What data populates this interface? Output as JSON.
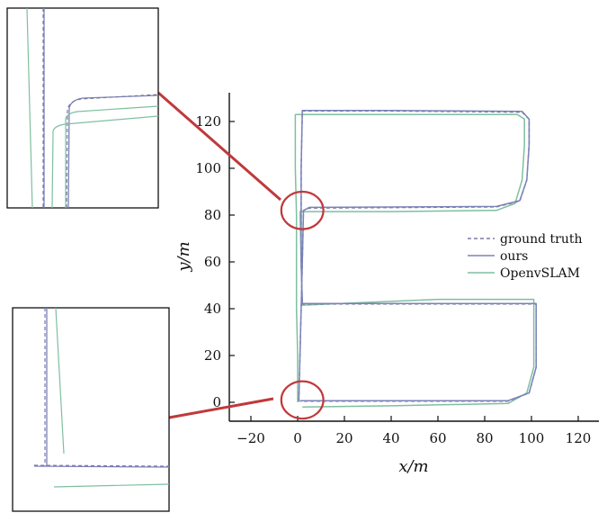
{
  "chart_data": {
    "type": "line",
    "xlabel": "x/m",
    "ylabel": "y/m",
    "xlim": [
      -28,
      130
    ],
    "ylim": [
      -8,
      132
    ],
    "xticks": [
      -20,
      0,
      20,
      40,
      60,
      80,
      100,
      120
    ],
    "yticks": [
      0,
      20,
      40,
      60,
      80,
      100,
      120
    ],
    "grid": false,
    "legend_position": "right",
    "series": [
      {
        "name": "ground truth",
        "style": "dashed",
        "color": "#7b78a6",
        "points": [
          [
            0.5,
            0.5
          ],
          [
            1,
            20
          ],
          [
            1.5,
            40
          ],
          [
            2,
            60
          ],
          [
            2.5,
            82
          ],
          [
            5,
            83
          ],
          [
            85,
            83.5
          ],
          [
            95,
            86
          ],
          [
            98,
            95
          ],
          [
            99,
            110
          ],
          [
            99,
            121
          ],
          [
            96,
            124
          ],
          [
            40,
            124.5
          ],
          [
            2,
            124.5
          ],
          [
            1.5,
            100
          ],
          [
            1.5,
            82
          ],
          [
            1.5,
            60
          ],
          [
            2,
            42
          ],
          [
            40,
            42
          ],
          [
            102,
            42
          ],
          [
            102,
            15
          ],
          [
            99,
            4
          ],
          [
            90,
            0.5
          ],
          [
            40,
            0.5
          ],
          [
            1,
            0.5
          ]
        ]
      },
      {
        "name": "ours",
        "style": "solid",
        "color": "#7b82b8",
        "points": [
          [
            0.5,
            0.3
          ],
          [
            1,
            20
          ],
          [
            1.5,
            40
          ],
          [
            2,
            60
          ],
          [
            2.5,
            82
          ],
          [
            5,
            83.3
          ],
          [
            85,
            83.7
          ],
          [
            95,
            86.2
          ],
          [
            98,
            95
          ],
          [
            99,
            110
          ],
          [
            99,
            121
          ],
          [
            96,
            124.3
          ],
          [
            40,
            124.7
          ],
          [
            2,
            124.7
          ],
          [
            1.5,
            100
          ],
          [
            1.5,
            82
          ],
          [
            1.5,
            60
          ],
          [
            2,
            42.2
          ],
          [
            40,
            42.2
          ],
          [
            102,
            42.2
          ],
          [
            102,
            15
          ],
          [
            99,
            4
          ],
          [
            90,
            0.7
          ],
          [
            40,
            0.7
          ],
          [
            1,
            0.7
          ]
        ]
      },
      {
        "name": "OpenvSLAM",
        "style": "solid",
        "color": "#7fbfa0",
        "points": [
          [
            2,
            -2
          ],
          [
            40,
            -1.5
          ],
          [
            90,
            -0.5
          ],
          [
            98,
            4
          ],
          [
            101,
            15
          ],
          [
            101,
            44
          ],
          [
            60,
            44
          ],
          [
            2,
            41.5
          ],
          [
            1.5,
            60
          ],
          [
            1,
            81.5
          ],
          [
            40,
            81.5
          ],
          [
            85,
            82
          ],
          [
            93,
            85
          ],
          [
            96,
            95
          ],
          [
            97,
            110
          ],
          [
            97,
            121
          ],
          [
            94,
            123
          ],
          [
            40,
            123
          ],
          [
            -1,
            123
          ],
          [
            -1,
            100
          ],
          [
            -0.5,
            80
          ],
          [
            -0.5,
            60
          ],
          [
            -0.5,
            40
          ],
          [
            0,
            20
          ],
          [
            0,
            0
          ]
        ]
      }
    ]
  },
  "annotations": {
    "zoom_regions": [
      {
        "center_data": [
          2,
          82
        ],
        "radius_x": 9,
        "radius_y": 8,
        "color": "#c0393b"
      },
      {
        "center_data": [
          2,
          1
        ],
        "radius_x": 9,
        "radius_y": 8,
        "color": "#c0393b"
      }
    ]
  }
}
